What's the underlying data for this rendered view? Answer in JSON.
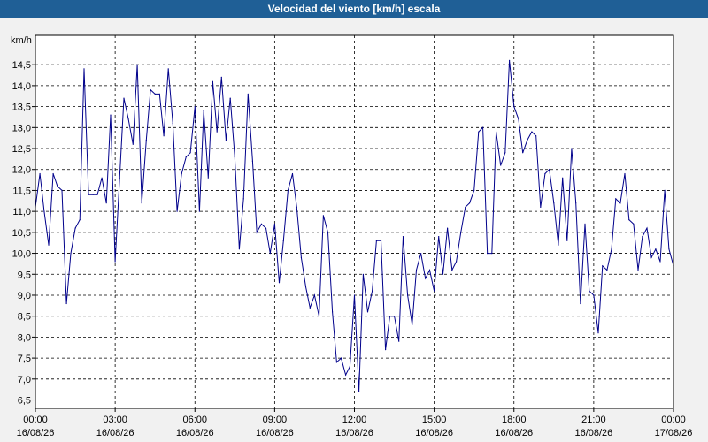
{
  "window": {
    "title": "Velocidad del viento [km/h] escala"
  },
  "colors": {
    "titlebar": "#1f5f96",
    "series": "#00008b",
    "plot_bg": "#ffffff",
    "grid": "#000000"
  },
  "chart_data": {
    "type": "line",
    "title": "Velocidad del viento [km/h] escala",
    "ylabel": "km/h",
    "xlabel": "",
    "ylim": [
      6.3,
      15.2
    ],
    "xlim": [
      0,
      24
    ],
    "grid": true,
    "y_ticks": [
      "6,5",
      "7,0",
      "7,5",
      "8,0",
      "8,5",
      "9,0",
      "9,5",
      "10,0",
      "10,5",
      "11,0",
      "11,5",
      "12,0",
      "12,5",
      "13,0",
      "13,5",
      "14,0",
      "14,5"
    ],
    "y_tick_values": [
      6.5,
      7.0,
      7.5,
      8.0,
      8.5,
      9.0,
      9.5,
      10.0,
      10.5,
      11.0,
      11.5,
      12.0,
      12.5,
      13.0,
      13.5,
      14.0,
      14.5
    ],
    "x_ticks": [
      {
        "time": "00:00",
        "date": "16/08/26"
      },
      {
        "time": "03:00",
        "date": "16/08/26"
      },
      {
        "time": "06:00",
        "date": "16/08/26"
      },
      {
        "time": "09:00",
        "date": "16/08/26"
      },
      {
        "time": "12:00",
        "date": "16/08/26"
      },
      {
        "time": "15:00",
        "date": "16/08/26"
      },
      {
        "time": "18:00",
        "date": "16/08/26"
      },
      {
        "time": "21:00",
        "date": "16/08/26"
      },
      {
        "time": "00:00",
        "date": "17/08/26"
      }
    ],
    "series": [
      {
        "x": [
          0.0,
          0.17,
          0.33,
          0.5,
          0.67,
          0.83,
          1.0,
          1.17,
          1.33,
          1.5,
          1.67,
          1.83,
          2.0,
          2.17,
          2.33,
          2.5,
          2.67,
          2.83,
          3.0,
          3.17,
          3.33,
          3.5,
          3.67,
          3.83,
          4.0,
          4.17,
          4.33,
          4.5,
          4.67,
          4.83,
          5.0,
          5.17,
          5.33,
          5.5,
          5.67,
          5.83,
          6.0,
          6.17,
          6.33,
          6.5,
          6.67,
          6.83,
          7.0,
          7.17,
          7.33,
          7.5,
          7.67,
          7.83,
          8.0,
          8.17,
          8.33,
          8.5,
          8.67,
          8.83,
          9.0,
          9.17,
          9.33,
          9.5,
          9.67,
          9.83,
          10.0,
          10.17,
          10.33,
          10.5,
          10.67,
          10.83,
          11.0,
          11.17,
          11.33,
          11.5,
          11.67,
          11.83,
          12.0,
          12.17,
          12.33,
          12.5,
          12.67,
          12.83,
          13.0,
          13.17,
          13.33,
          13.5,
          13.67,
          13.83,
          14.0,
          14.17,
          14.33,
          14.5,
          14.67,
          14.83,
          15.0,
          15.17,
          15.33,
          15.5,
          15.67,
          15.83,
          16.0,
          16.17,
          16.33,
          16.5,
          16.67,
          16.83,
          17.0,
          17.17,
          17.33,
          17.5,
          17.67,
          17.83,
          18.0,
          18.17,
          18.33,
          18.5,
          18.67,
          18.83,
          19.0,
          19.17,
          19.33,
          19.5,
          19.67,
          19.83,
          20.0,
          20.17,
          20.33,
          20.5,
          20.67,
          20.83,
          21.0,
          21.17,
          21.33,
          21.5,
          21.67,
          21.83,
          22.0,
          22.17,
          22.33,
          22.5,
          22.67,
          22.83,
          23.0,
          23.17,
          23.33,
          23.5,
          23.67,
          23.83,
          24.0
        ],
        "y": [
          11.1,
          11.9,
          11.0,
          10.2,
          11.9,
          11.6,
          11.5,
          8.8,
          10.0,
          10.6,
          10.8,
          14.4,
          11.4,
          11.4,
          11.4,
          11.8,
          11.2,
          13.3,
          9.8,
          11.8,
          13.7,
          13.2,
          12.6,
          14.5,
          11.2,
          12.7,
          13.9,
          13.8,
          13.8,
          12.8,
          14.4,
          13.1,
          11.0,
          11.9,
          12.3,
          12.4,
          13.5,
          11.0,
          13.4,
          11.8,
          14.1,
          12.9,
          14.2,
          12.7,
          13.7,
          12.3,
          10.1,
          11.3,
          13.8,
          12.2,
          10.5,
          10.7,
          10.6,
          10.0,
          10.7,
          9.3,
          10.3,
          11.5,
          11.9,
          11.1,
          9.9,
          9.2,
          8.7,
          9.0,
          8.5,
          10.9,
          10.5,
          8.6,
          7.4,
          7.5,
          7.1,
          7.3,
          9.0,
          6.7,
          9.5,
          8.6,
          9.1,
          10.3,
          10.3,
          7.7,
          8.5,
          8.5,
          7.9,
          10.4,
          9.0,
          8.3,
          9.6,
          10.0,
          9.4,
          9.6,
          9.1,
          10.4,
          9.5,
          10.6,
          9.6,
          9.8,
          10.5,
          11.1,
          11.2,
          11.5,
          12.9,
          13.0,
          10.0,
          10.0,
          12.9,
          12.1,
          12.4,
          14.6,
          13.5,
          13.2,
          12.4,
          12.7,
          12.9,
          12.8,
          11.1,
          11.9,
          12.0,
          11.2,
          10.2,
          11.8,
          10.3,
          12.5,
          11.2,
          8.8,
          10.7,
          9.1,
          9.0,
          8.1,
          9.7,
          9.6,
          10.1,
          11.3,
          11.2,
          11.9,
          10.8,
          10.7,
          9.6,
          10.4,
          10.6,
          9.9,
          10.1,
          9.8,
          11.5,
          10.1,
          9.7
        ]
      }
    ]
  }
}
